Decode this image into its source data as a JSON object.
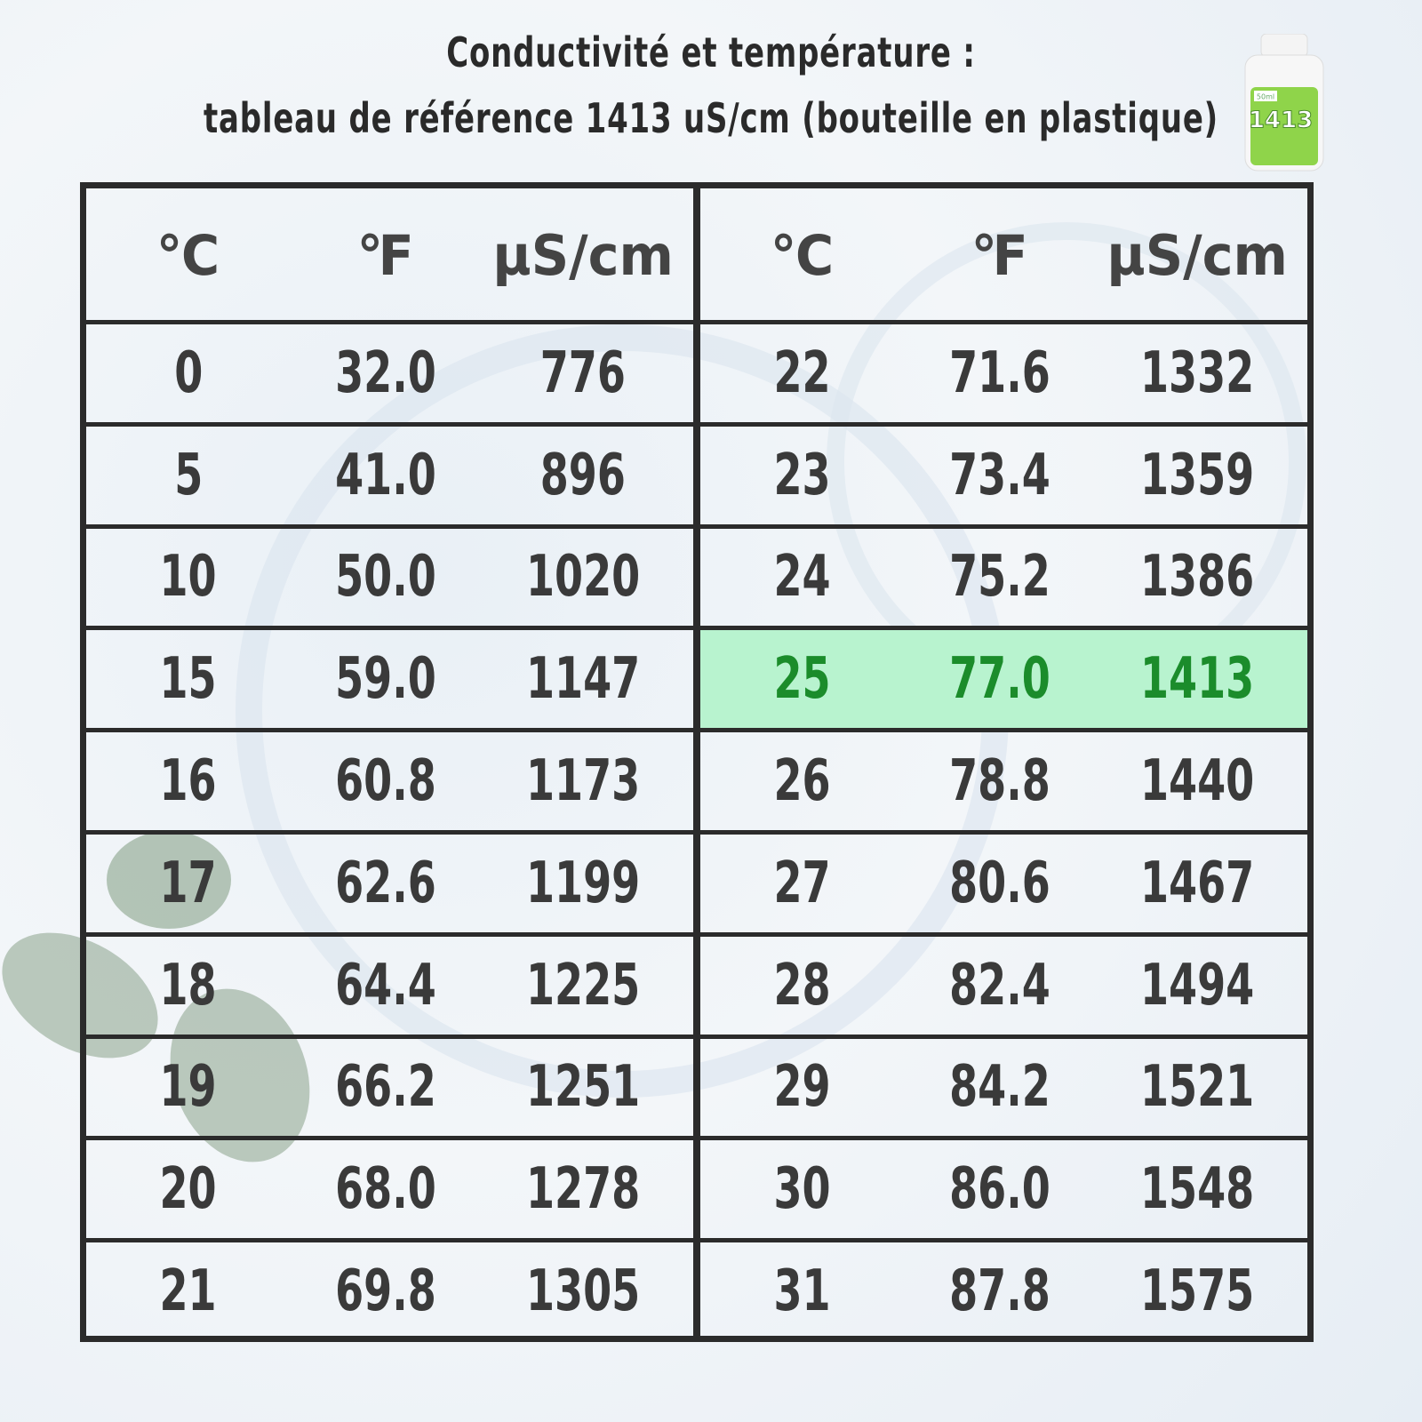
{
  "header": {
    "title": [
      "Conductivité et température :",
      "tableau de référence 1413 uS/cm (bouteille en plastique)"
    ]
  },
  "bottle": {
    "volume": "50ml",
    "label": "1413"
  },
  "table": {
    "headers": [
      "℃",
      "℉",
      "µS/cm",
      "℃",
      "℉",
      "µS/cm"
    ],
    "rows": [
      [
        "0",
        "32.0",
        "776",
        "22",
        "71.6",
        "1332"
      ],
      [
        "5",
        "41.0",
        "896",
        "23",
        "73.4",
        "1359"
      ],
      [
        "10",
        "50.0",
        "1020",
        "24",
        "75.2",
        "1386"
      ],
      [
        "15",
        "59.0",
        "1147",
        "25",
        "77.0",
        "1413"
      ],
      [
        "16",
        "60.8",
        "1173",
        "26",
        "78.8",
        "1440"
      ],
      [
        "17",
        "62.6",
        "1199",
        "27",
        "80.6",
        "1467"
      ],
      [
        "18",
        "64.4",
        "1225",
        "28",
        "82.4",
        "1494"
      ],
      [
        "19",
        "66.2",
        "1251",
        "29",
        "84.2",
        "1521"
      ],
      [
        "20",
        "68.0",
        "1278",
        "30",
        "86.0",
        "1548"
      ],
      [
        "21",
        "69.8",
        "1305",
        "31",
        "87.8",
        "1575"
      ]
    ]
  }
}
